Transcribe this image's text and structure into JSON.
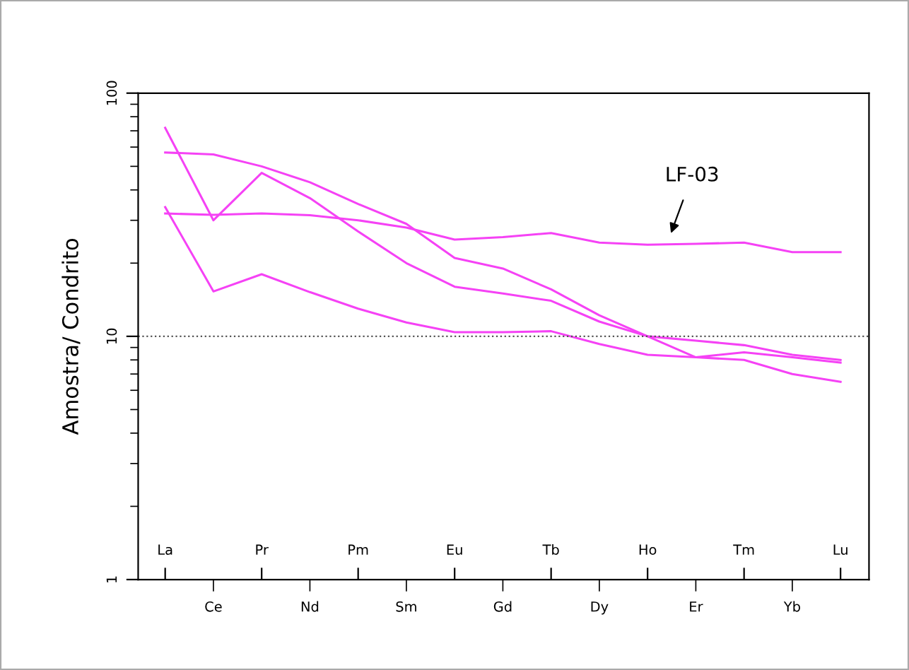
{
  "chart_data": {
    "type": "line",
    "ylabel": "Amostra/ Condrito",
    "log": "y",
    "ylim": [
      1,
      100
    ],
    "yticks": [
      1,
      10,
      100
    ],
    "grid": false,
    "marker": "none",
    "line_style": "solid",
    "categories": [
      "La",
      "Ce",
      "Pr",
      "Nd",
      "Pm",
      "Sm",
      "Eu",
      "Gd",
      "Tb",
      "Dy",
      "Ho",
      "Er",
      "Tm",
      "Yb",
      "Lu"
    ],
    "series": [
      {
        "color": "#f542f5",
        "values": [
          72,
          30,
          47,
          37,
          27,
          20,
          16,
          15,
          14,
          11.5,
          10,
          9.6,
          9.2,
          8.4,
          8.0
        ]
      },
      {
        "color": "#f542f5",
        "values": [
          57,
          56,
          50,
          43,
          35,
          29,
          21,
          19,
          15.6,
          12.2,
          10,
          8.2,
          8.6,
          8.2,
          7.8
        ]
      },
      {
        "color": "#f542f5",
        "values": [
          34,
          15.3,
          18,
          15.2,
          13,
          11.4,
          10.4,
          10.4,
          10.5,
          9.3,
          8.4,
          8.2,
          8.0,
          7.0,
          6.5
        ]
      },
      {
        "color": "#f542f5",
        "values": [
          32,
          31.6,
          32,
          31.5,
          30,
          28,
          25,
          25.6,
          26.6,
          24.3,
          23.8,
          24,
          24.3,
          22.2,
          22.2
        ]
      }
    ],
    "ref_lines": [
      {
        "axis": "y",
        "value": 10,
        "color": "#555555",
        "line_style": "dotted"
      }
    ],
    "annotations": [
      "LF-03"
    ]
  }
}
